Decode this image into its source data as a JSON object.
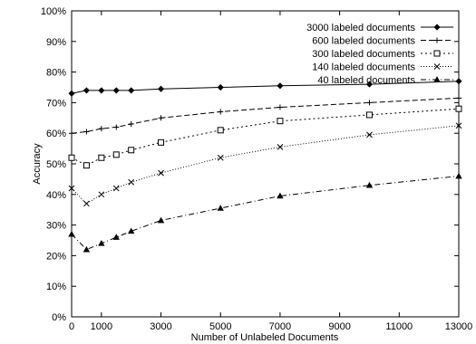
{
  "chart_data": {
    "type": "line",
    "xlabel": "Number of Unlabeled Documents",
    "ylabel": "Accuracy",
    "xlim": [
      0,
      13000
    ],
    "ylim": [
      0,
      100
    ],
    "x_ticks": [
      0,
      1000,
      3000,
      5000,
      7000,
      9000,
      11000,
      13000
    ],
    "y_ticks": [
      0,
      10,
      20,
      30,
      40,
      50,
      60,
      70,
      80,
      90,
      100
    ],
    "y_tick_suffix": "%",
    "grid": false,
    "legend_position": "top-right",
    "x": [
      0,
      500,
      1000,
      1500,
      2000,
      3000,
      5000,
      7000,
      10000,
      13000
    ],
    "series": [
      {
        "name": "3000 labeled documents",
        "marker": "diamond",
        "dash": "",
        "values": [
          73,
          74,
          74,
          74,
          74,
          74.5,
          75,
          75.5,
          76,
          77
        ]
      },
      {
        "name": "600 labeled documents",
        "marker": "plus",
        "dash": "6 3",
        "values": [
          60,
          60.5,
          61.5,
          62,
          63,
          65,
          67,
          68.5,
          70,
          71.5
        ]
      },
      {
        "name": "300 labeled documents",
        "marker": "square",
        "dash": "2 3",
        "values": [
          52,
          49.5,
          52,
          53,
          54.5,
          57,
          61,
          64,
          66,
          68
        ]
      },
      {
        "name": "140 labeled documents",
        "marker": "cross",
        "dash": "1 2",
        "values": [
          42,
          37,
          40,
          42,
          44,
          47,
          52,
          55.5,
          59.5,
          62.5
        ]
      },
      {
        "name": "40 labeled documents",
        "marker": "triangle",
        "dash": "6 3 1 3",
        "values": [
          27,
          22,
          24,
          26,
          28,
          31.5,
          35.5,
          39.5,
          43,
          46
        ]
      }
    ]
  }
}
